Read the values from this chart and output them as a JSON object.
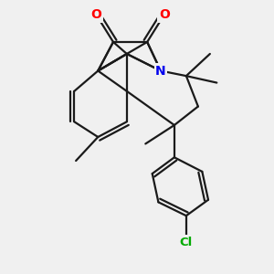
{
  "background_color": "#f0f0f0",
  "bond_color": "#1a1a1a",
  "bond_width": 1.6,
  "atom_colors": {
    "O": "#ff0000",
    "N": "#0000ee",
    "Cl": "#00aa00"
  },
  "figsize": [
    3.0,
    3.0
  ],
  "dpi": 100,
  "xlim": [
    -0.8,
    5.2
  ],
  "ylim": [
    -1.8,
    6.2
  ]
}
